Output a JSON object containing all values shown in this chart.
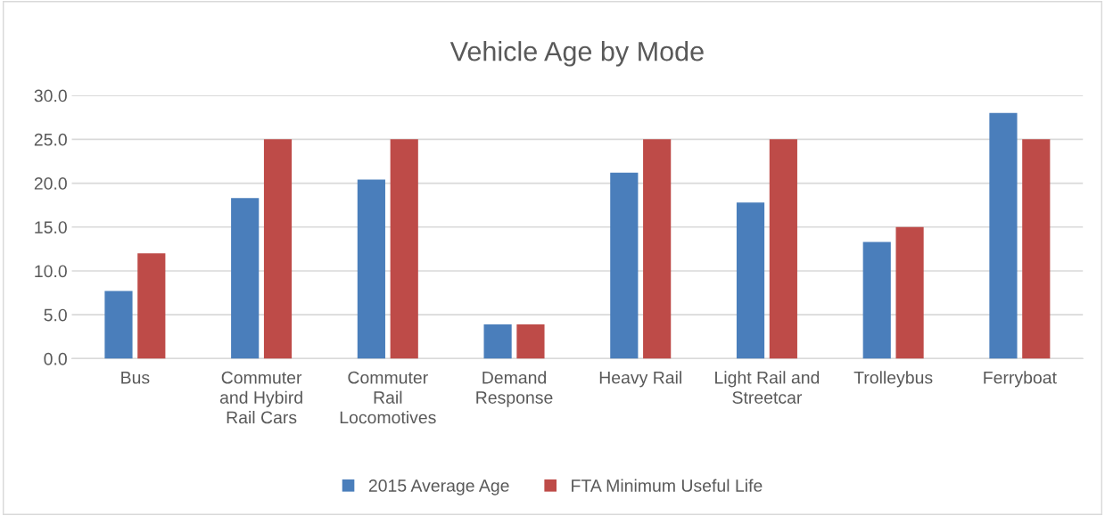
{
  "chart_data": {
    "type": "bar",
    "title": "Vehicle Age by Mode",
    "categories": [
      "Bus",
      "Commuter\nand Hybird\nRail Cars",
      "Commuter\nRail\nLocomotives",
      "Demand\nResponse",
      "Heavy Rail",
      "Light Rail and\nStreetcar",
      "Trolleybus",
      "Ferryboat"
    ],
    "series": [
      {
        "name": "2015 Average Age",
        "color": "#4a7ebb",
        "values": [
          7.7,
          18.3,
          20.4,
          3.9,
          21.2,
          17.8,
          13.3,
          28.0
        ]
      },
      {
        "name": "FTA Minimum Useful Life",
        "color": "#be4b48",
        "values": [
          12,
          25,
          25,
          3.9,
          25,
          25,
          15,
          25
        ]
      }
    ],
    "ylim": [
      0,
      30
    ],
    "yticks": [
      {
        "value": 0,
        "label": "0.0"
      },
      {
        "value": 5,
        "label": "5.0"
      },
      {
        "value": 10,
        "label": "10.0"
      },
      {
        "value": 15,
        "label": "15.0"
      },
      {
        "value": 20,
        "label": "20.0"
      },
      {
        "value": 25,
        "label": "25.0"
      },
      {
        "value": 30,
        "label": "30.0"
      }
    ],
    "grid": "y",
    "legend": "bottom"
  }
}
